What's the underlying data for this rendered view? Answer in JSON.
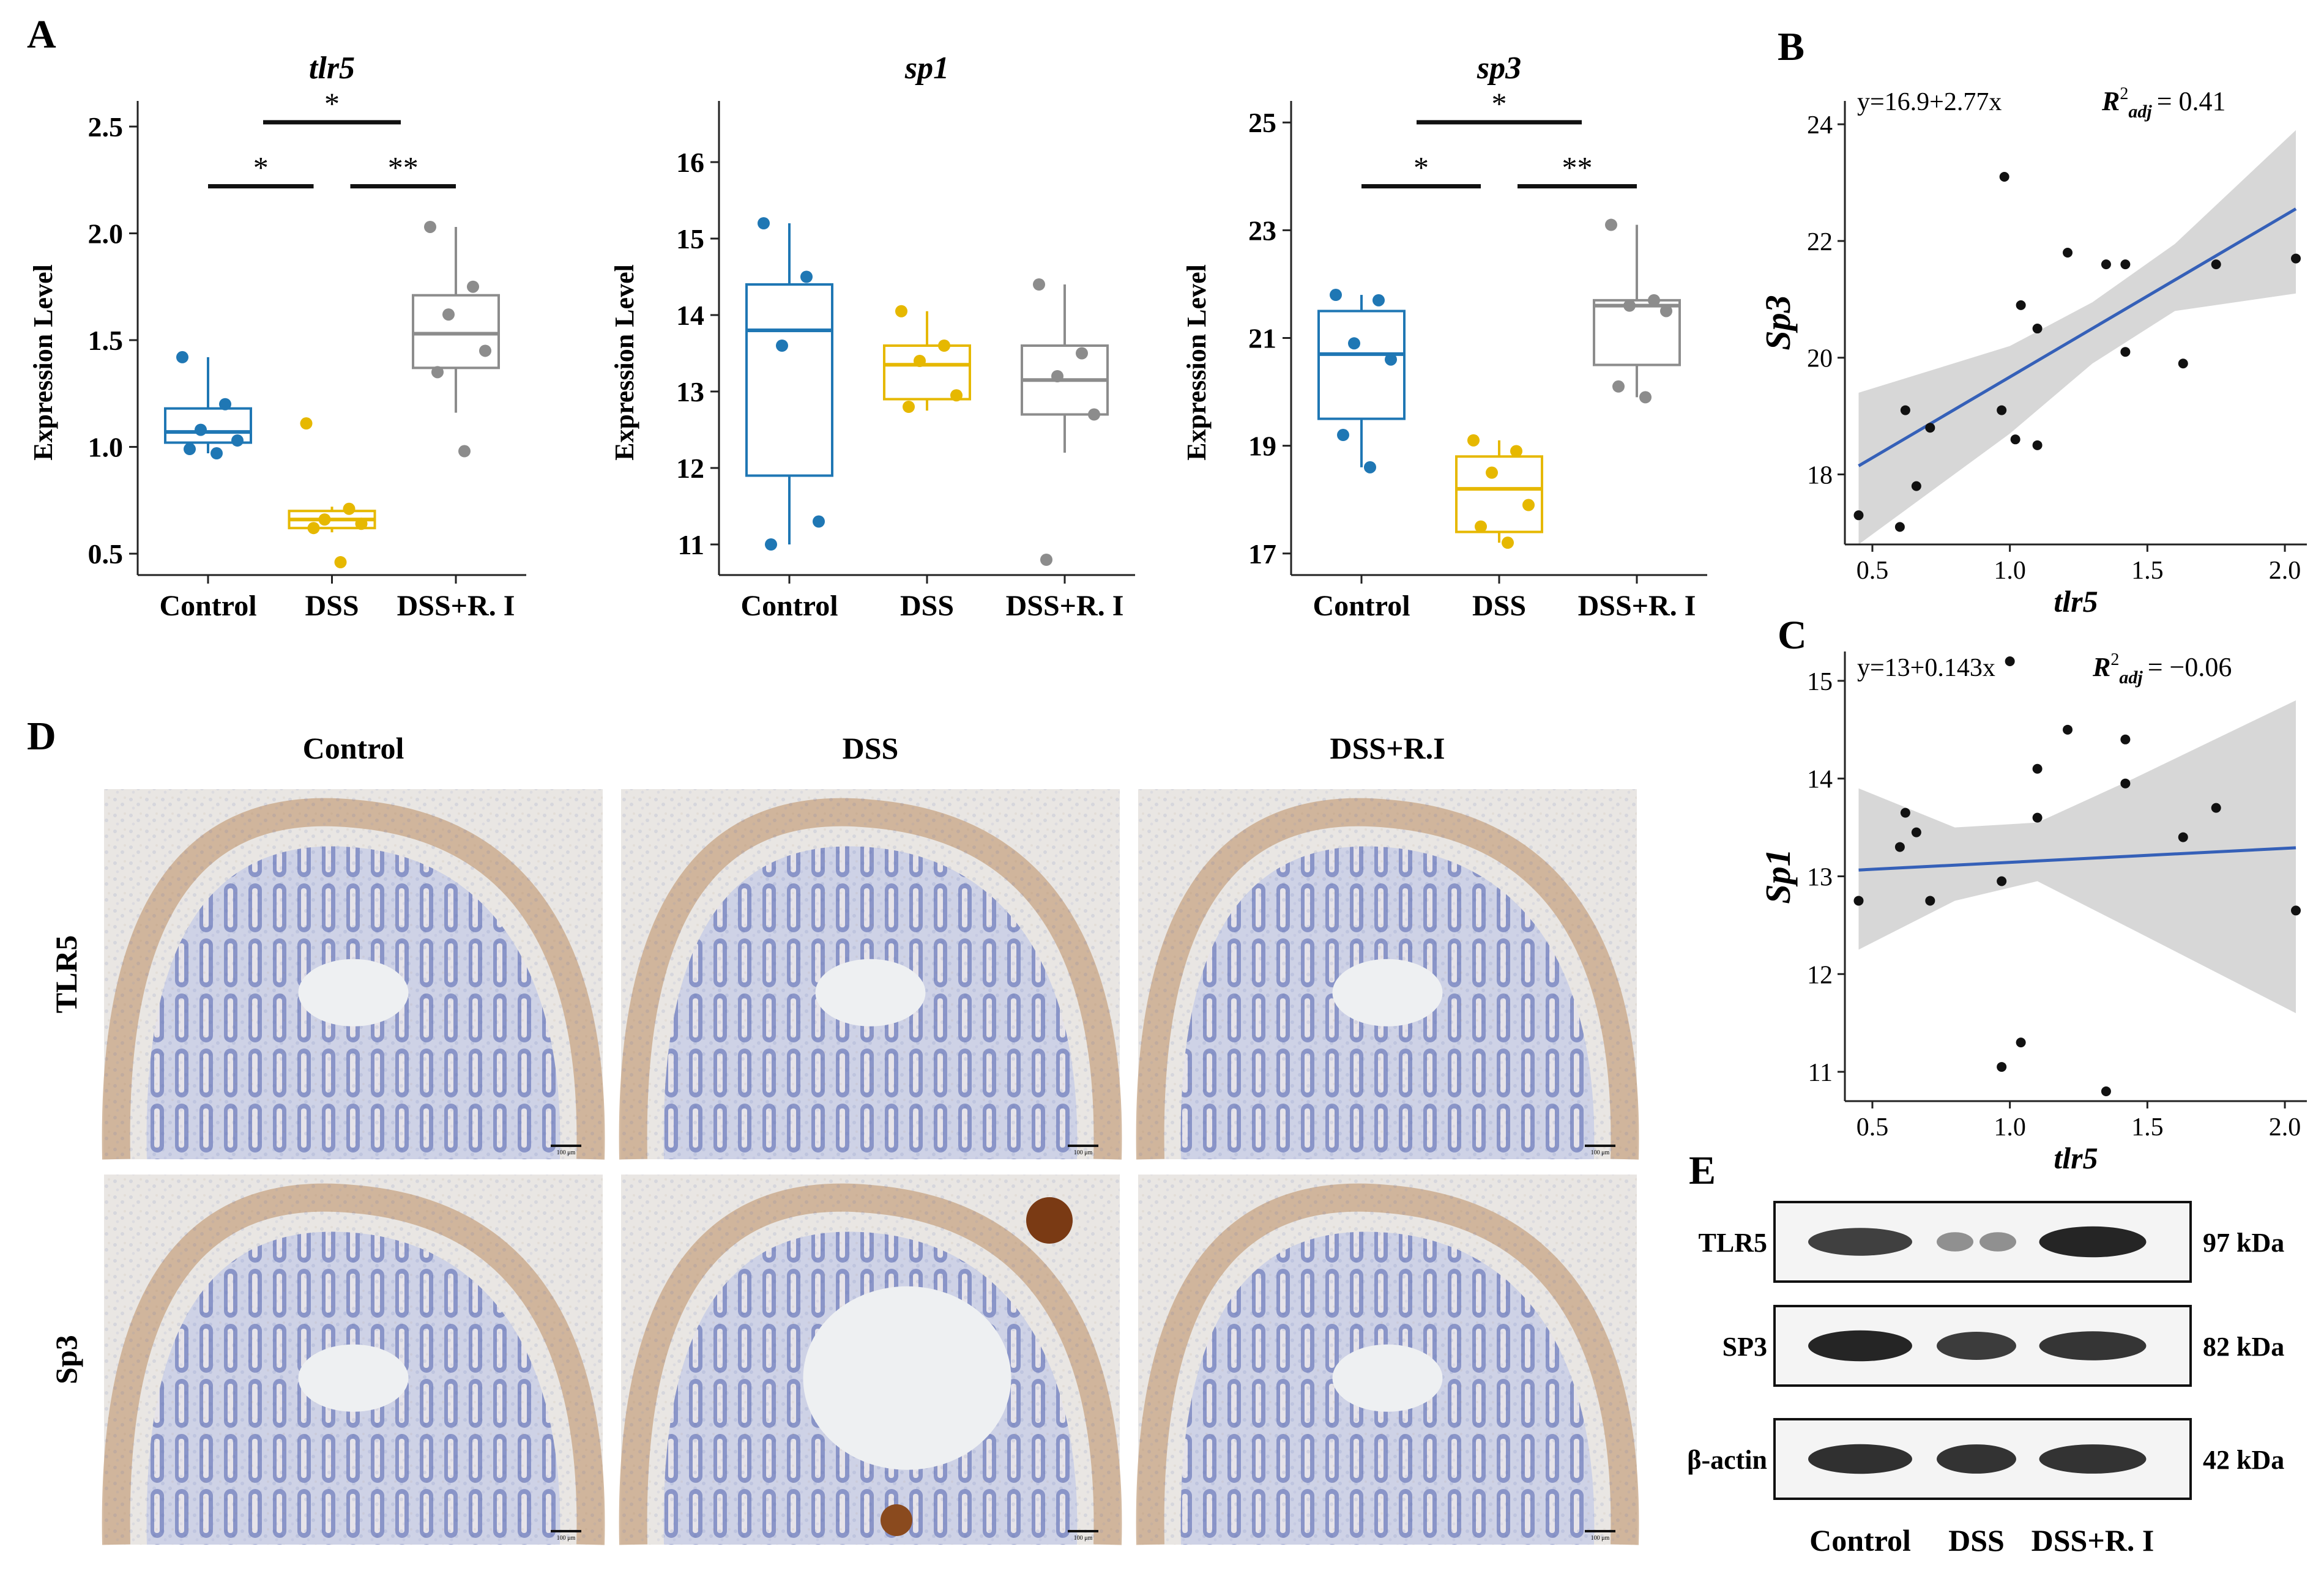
{
  "panel_letters": {
    "A": "A",
    "B": "B",
    "C": "C",
    "D": "D",
    "E": "E"
  },
  "colors": {
    "control": "#1f77b4",
    "dss": "#e6b800",
    "dssri": "#8c8c8c",
    "fit_line": "#3560b8",
    "ci_band": "#d3d3d3"
  },
  "chart_data": [
    {
      "id": "tlr5_box",
      "type": "box",
      "title": "tlr5",
      "ylabel": "Expression Level",
      "categories": [
        "Control",
        "DSS",
        "DSS+R. I"
      ],
      "yticks": [
        "0.5",
        "1.0",
        "1.5",
        "2.0",
        "2.5"
      ],
      "ylim": [
        0.4,
        2.62
      ],
      "series": [
        {
          "category": "Control",
          "q1": 1.02,
          "median": 1.07,
          "q3": 1.18,
          "whisker_low": 0.97,
          "whisker_high": 1.42,
          "points": [
            1.42,
            1.2,
            1.08,
            1.03,
            0.99,
            0.97
          ]
        },
        {
          "category": "DSS",
          "q1": 0.62,
          "median": 0.66,
          "q3": 0.7,
          "whisker_low": 0.6,
          "whisker_high": 0.72,
          "points": [
            1.11,
            0.71,
            0.66,
            0.64,
            0.62,
            0.46
          ]
        },
        {
          "category": "DSS+R. I",
          "q1": 1.37,
          "median": 1.53,
          "q3": 1.71,
          "whisker_low": 1.16,
          "whisker_high": 2.03,
          "points": [
            2.03,
            1.75,
            1.62,
            1.45,
            1.35,
            0.98
          ]
        }
      ],
      "significance": [
        {
          "from": "Control",
          "to": "DSS",
          "label": "*"
        },
        {
          "from": "DSS",
          "to": "DSS+R. I",
          "label": "**"
        },
        {
          "from": "Control",
          "to": "DSS+R. I",
          "label": "*"
        }
      ]
    },
    {
      "id": "sp1_box",
      "type": "box",
      "title": "sp1",
      "ylabel": "Expression Level",
      "categories": [
        "Control",
        "DSS",
        "DSS+R. I"
      ],
      "yticks": [
        "11",
        "12",
        "13",
        "14",
        "15",
        "16"
      ],
      "ylim": [
        10.6,
        16.8
      ],
      "series": [
        {
          "category": "Control",
          "q1": 11.9,
          "median": 13.8,
          "q3": 14.4,
          "whisker_low": 11.0,
          "whisker_high": 15.2,
          "points": [
            15.2,
            14.5,
            13.6,
            11.3,
            11.0
          ]
        },
        {
          "category": "DSS",
          "q1": 12.9,
          "median": 13.35,
          "q3": 13.6,
          "whisker_low": 12.75,
          "whisker_high": 14.05,
          "points": [
            14.05,
            13.6,
            13.4,
            12.95,
            12.8
          ]
        },
        {
          "category": "DSS+R. I",
          "q1": 12.7,
          "median": 13.15,
          "q3": 13.6,
          "whisker_low": 12.2,
          "whisker_high": 14.4,
          "points": [
            14.4,
            13.5,
            13.2,
            12.7,
            10.8
          ]
        }
      ],
      "significance": []
    },
    {
      "id": "sp3_box",
      "type": "box",
      "title": "sp3",
      "ylabel": "Expression Level",
      "categories": [
        "Control",
        "DSS",
        "DSS+R. I"
      ],
      "yticks": [
        "17",
        "19",
        "21",
        "23",
        "25"
      ],
      "ylim": [
        16.6,
        25.4
      ],
      "series": [
        {
          "category": "Control",
          "q1": 19.5,
          "median": 20.7,
          "q3": 21.5,
          "whisker_low": 18.6,
          "whisker_high": 21.8,
          "points": [
            21.8,
            21.7,
            20.9,
            20.6,
            19.2,
            18.6
          ]
        },
        {
          "category": "DSS",
          "q1": 17.4,
          "median": 18.2,
          "q3": 18.8,
          "whisker_low": 17.2,
          "whisker_high": 19.1,
          "points": [
            19.1,
            18.9,
            18.5,
            17.9,
            17.5,
            17.2
          ]
        },
        {
          "category": "DSS+R. I",
          "q1": 20.5,
          "median": 21.6,
          "q3": 21.7,
          "whisker_low": 19.9,
          "whisker_high": 23.1,
          "points": [
            23.1,
            21.7,
            21.6,
            21.5,
            20.1,
            19.9
          ]
        }
      ],
      "significance": [
        {
          "from": "Control",
          "to": "DSS",
          "label": "*"
        },
        {
          "from": "DSS",
          "to": "DSS+R. I",
          "label": "**"
        },
        {
          "from": "Control",
          "to": "DSS+R. I",
          "label": "*"
        }
      ]
    },
    {
      "id": "sp3_vs_tlr5",
      "type": "scatter",
      "xlabel": "tlr5",
      "ylabel": "Sp3",
      "equation": "y=16.9+2.77x",
      "r2_label": "R²adj = 0.41",
      "r2_value": "= 0.41",
      "xlim": [
        0.4,
        2.08
      ],
      "ylim": [
        16.8,
        24.4
      ],
      "xticks": [
        "0.5",
        "1.0",
        "1.5",
        "2.0"
      ],
      "yticks": [
        "18",
        "20",
        "22",
        "24"
      ],
      "fit": {
        "intercept": 16.9,
        "slope": 2.77
      },
      "ci_lower": [
        [
          0.45,
          16.8
        ],
        [
          1.0,
          18.7
        ],
        [
          1.3,
          19.9
        ],
        [
          1.6,
          20.8
        ],
        [
          2.04,
          21.1
        ]
      ],
      "ci_upper": [
        [
          0.45,
          19.4
        ],
        [
          1.0,
          20.2
        ],
        [
          1.3,
          20.95
        ],
        [
          1.6,
          21.95
        ],
        [
          2.04,
          23.9
        ]
      ],
      "points": [
        [
          0.45,
          17.3
        ],
        [
          0.6,
          17.1
        ],
        [
          0.62,
          19.1
        ],
        [
          0.66,
          17.8
        ],
        [
          0.71,
          18.8
        ],
        [
          0.97,
          19.1
        ],
        [
          0.98,
          23.1
        ],
        [
          1.02,
          18.6
        ],
        [
          1.04,
          20.9
        ],
        [
          1.1,
          20.5
        ],
        [
          1.1,
          18.5
        ],
        [
          1.21,
          21.8
        ],
        [
          1.35,
          21.6
        ],
        [
          1.42,
          21.6
        ],
        [
          1.42,
          20.1
        ],
        [
          1.63,
          19.9
        ],
        [
          1.75,
          21.6
        ],
        [
          2.04,
          21.7
        ]
      ]
    },
    {
      "id": "sp1_vs_tlr5",
      "type": "scatter",
      "xlabel": "tlr5",
      "ylabel": "Sp1",
      "equation": "y=13+0.143x",
      "r2_label": "R²adj = −0.06",
      "r2_value": "= −0.06",
      "xlim": [
        0.4,
        2.08
      ],
      "ylim": [
        10.7,
        15.3
      ],
      "xticks": [
        "0.5",
        "1.0",
        "1.5",
        "2.0"
      ],
      "yticks": [
        "11",
        "12",
        "13",
        "14",
        "15"
      ],
      "fit": {
        "intercept": 13.0,
        "slope": 0.143
      },
      "ci_lower": [
        [
          0.45,
          12.25
        ],
        [
          0.8,
          12.75
        ],
        [
          1.1,
          12.95
        ],
        [
          1.45,
          12.45
        ],
        [
          2.04,
          11.6
        ]
      ],
      "ci_upper": [
        [
          0.45,
          13.9
        ],
        [
          0.8,
          13.5
        ],
        [
          1.1,
          13.55
        ],
        [
          1.45,
          14.0
        ],
        [
          2.04,
          14.8
        ]
      ],
      "points": [
        [
          0.45,
          12.75
        ],
        [
          0.6,
          13.3
        ],
        [
          0.62,
          13.65
        ],
        [
          0.66,
          13.45
        ],
        [
          0.71,
          12.75
        ],
        [
          0.97,
          12.95
        ],
        [
          0.97,
          11.05
        ],
        [
          1.0,
          15.2
        ],
        [
          1.04,
          11.3
        ],
        [
          1.1,
          14.1
        ],
        [
          1.1,
          13.6
        ],
        [
          1.21,
          14.5
        ],
        [
          1.35,
          10.8
        ],
        [
          1.42,
          14.4
        ],
        [
          1.42,
          13.95
        ],
        [
          1.63,
          13.4
        ],
        [
          1.75,
          13.7
        ],
        [
          2.04,
          12.65
        ]
      ]
    }
  ],
  "histology": {
    "columns": [
      "Control",
      "DSS",
      "DSS+R.I"
    ],
    "rows": [
      "TLR5",
      "Sp3"
    ],
    "scale_bar": "100 μm"
  },
  "western_blot": {
    "rows": [
      {
        "label": "TLR5",
        "kda": "97 kDa",
        "intensity": [
          0.78,
          0.32,
          0.95
        ]
      },
      {
        "label": "SP3",
        "kda": "82 kDa",
        "intensity": [
          0.95,
          0.8,
          0.85
        ]
      },
      {
        "label": "β-actin",
        "kda": "42 kDa",
        "intensity": [
          0.88,
          0.86,
          0.86
        ]
      }
    ],
    "lanes": [
      "Control",
      "DSS",
      "DSS+R. I"
    ]
  }
}
